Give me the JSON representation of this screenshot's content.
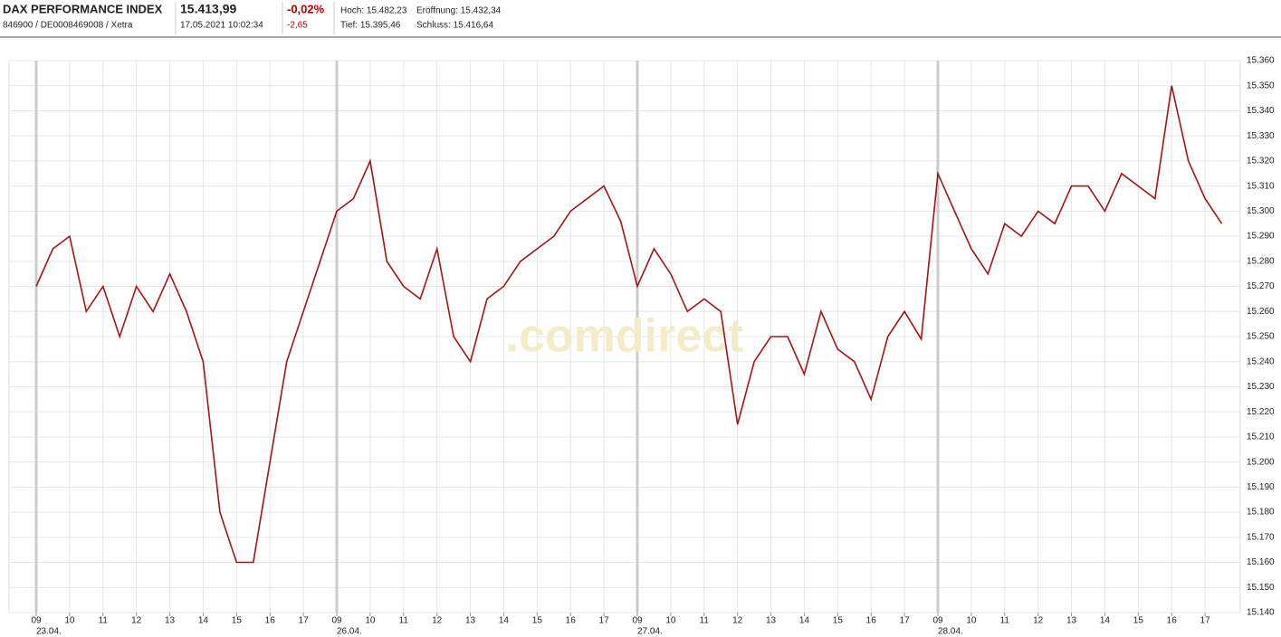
{
  "header": {
    "name": "DAX PERFORMANCE INDEX",
    "ids": "846900 / DE0008469008 / Xetra",
    "price": "15.413,99",
    "time": "17.05.2021 10:02:34",
    "change_pct": "-0,02%",
    "change_abs": "-2,65",
    "high": "Hoch: 15.482,23",
    "open": "Eröffnung: 15.432,34",
    "low": "Tief: 15.395,46",
    "close": "Schluss: 15.416,64",
    "watermark": ".comdirect"
  },
  "chart_data": {
    "type": "line",
    "days": [
      "23.04.",
      "26.04.",
      "27.04.",
      "28.04."
    ],
    "categories": [
      "09",
      null,
      "10",
      null,
      "11",
      null,
      "12",
      null,
      "13",
      null,
      "14",
      null,
      "15",
      null,
      "16",
      null,
      "17",
      null,
      "09",
      null,
      "10",
      null,
      "11",
      null,
      "12",
      null,
      "13",
      null,
      "14",
      null,
      "15",
      null,
      "16",
      null,
      "17",
      null,
      "09",
      null,
      "10",
      null,
      "11",
      null,
      "12",
      null,
      "13",
      null,
      "14",
      null,
      "15",
      null,
      "16",
      null,
      "17",
      null,
      "09",
      null,
      "10",
      null,
      "11",
      null,
      "12",
      null,
      "13",
      null,
      "14",
      null,
      "15",
      null,
      "16",
      null,
      "17",
      null
    ],
    "series": [
      {
        "name": "DAX",
        "color": "#a31515",
        "values": [
          15270,
          15285,
          15290,
          15260,
          15270,
          15250,
          15270,
          15260,
          15275,
          15260,
          15240,
          15180,
          15160,
          15160,
          15200,
          15240,
          15260,
          15280,
          15300,
          15305,
          15320,
          15280,
          15270,
          15265,
          15285,
          15250,
          15240,
          15265,
          15270,
          15280,
          15285,
          15290,
          15300,
          15305,
          15310,
          15296,
          15270,
          15285,
          15275,
          15260,
          15265,
          15260,
          15215,
          15240,
          15250,
          15250,
          15235,
          15260,
          15245,
          15240,
          15225,
          15250,
          15260,
          15249,
          15315,
          15300,
          15285,
          15275,
          15295,
          15290,
          15300,
          15295,
          15310,
          15310,
          15300,
          15315,
          15310,
          15305,
          15350,
          15320,
          15305,
          15295
        ]
      }
    ],
    "ylim": [
      15140,
      15360
    ],
    "yticks": [
      {
        "value": 15140,
        "label": "15.140"
      },
      {
        "value": 15150,
        "label": "15.150"
      },
      {
        "value": 15160,
        "label": "15.160"
      },
      {
        "value": 15170,
        "label": "15.170"
      },
      {
        "value": 15180,
        "label": "15.180"
      },
      {
        "value": 15190,
        "label": "15.190"
      },
      {
        "value": 15200,
        "label": "15.200"
      },
      {
        "value": 15210,
        "label": "15.210"
      },
      {
        "value": 15220,
        "label": "15.220"
      },
      {
        "value": 15230,
        "label": "15.230"
      },
      {
        "value": 15240,
        "label": "15.240"
      },
      {
        "value": 15250,
        "label": "15.250"
      },
      {
        "value": 15260,
        "label": "15.260"
      },
      {
        "value": 15270,
        "label": "15.270"
      },
      {
        "value": 15280,
        "label": "15.280"
      },
      {
        "value": 15290,
        "label": "15.290"
      },
      {
        "value": 15300,
        "label": "15.300"
      },
      {
        "value": 15310,
        "label": "15.310"
      },
      {
        "value": 15320,
        "label": "15.320"
      },
      {
        "value": 15330,
        "label": "15.330"
      },
      {
        "value": 15340,
        "label": "15.340"
      },
      {
        "value": 15350,
        "label": "15.350"
      },
      {
        "value": 15360,
        "label": "15.360"
      }
    ],
    "grid": true
  }
}
